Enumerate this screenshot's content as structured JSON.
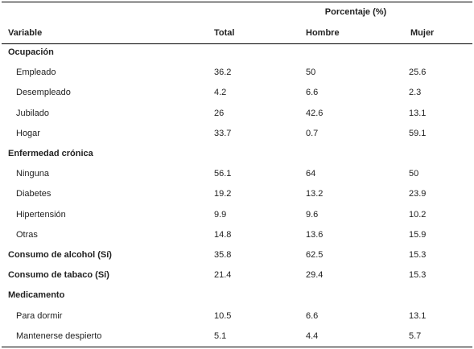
{
  "table": {
    "super_header": "Porcentaje (%)",
    "columns": [
      "Variable",
      "Total",
      "Hombre",
      "Mujer"
    ],
    "rows": [
      {
        "type": "section",
        "label": "Ocupación",
        "total": "",
        "hombre": "",
        "mujer": ""
      },
      {
        "type": "sub",
        "label": "Empleado",
        "total": "36.2",
        "hombre": "50",
        "mujer": "25.6"
      },
      {
        "type": "sub",
        "label": "Desempleado",
        "total": "4.2",
        "hombre": "6.6",
        "mujer": "2.3"
      },
      {
        "type": "sub",
        "label": "Jubilado",
        "total": "26",
        "hombre": "42.6",
        "mujer": "13.1"
      },
      {
        "type": "sub",
        "label": "Hogar",
        "total": "33.7",
        "hombre": "0.7",
        "mujer": "59.1"
      },
      {
        "type": "section",
        "label": "Enfermedad crónica",
        "total": "",
        "hombre": "",
        "mujer": ""
      },
      {
        "type": "sub",
        "label": "Ninguna",
        "total": "56.1",
        "hombre": "64",
        "mujer": "50"
      },
      {
        "type": "sub",
        "label": "Diabetes",
        "total": "19.2",
        "hombre": "13.2",
        "mujer": "23.9"
      },
      {
        "type": "sub",
        "label": "Hipertensión",
        "total": "9.9",
        "hombre": "9.6",
        "mujer": "10.2"
      },
      {
        "type": "sub",
        "label": "Otras",
        "total": "14.8",
        "hombre": "13.6",
        "mujer": "15.9"
      },
      {
        "type": "section",
        "label": "Consumo de alcohol (Sí)",
        "total": "35.8",
        "hombre": "62.5",
        "mujer": "15.3"
      },
      {
        "type": "section",
        "label": "Consumo de tabaco (Sí)",
        "total": "21.4",
        "hombre": "29.4",
        "mujer": "15.3"
      },
      {
        "type": "section",
        "label": "Medicamento",
        "total": "",
        "hombre": "",
        "mujer": ""
      },
      {
        "type": "sub",
        "label": "Para dormir",
        "total": "10.5",
        "hombre": "6.6",
        "mujer": "13.1"
      },
      {
        "type": "sub",
        "label": "Mantenerse despierto",
        "total": "5.1",
        "hombre": "4.4",
        "mujer": "5.7"
      }
    ]
  }
}
